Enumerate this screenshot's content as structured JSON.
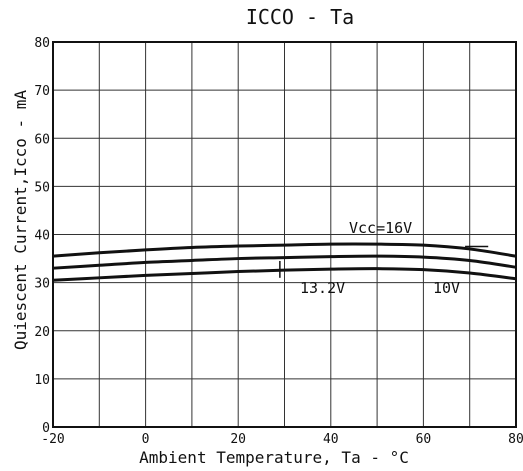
{
  "chart_data": {
    "type": "line",
    "title": "ICCO - Ta",
    "xlabel": "Ambient Temperature, Ta - °C",
    "ylabel": "Quiescent Current,Icco - mA",
    "xlim": [
      -20,
      80
    ],
    "ylim": [
      0,
      80
    ],
    "x_ticks": [
      -20,
      0,
      20,
      40,
      60,
      80
    ],
    "y_ticks": [
      0,
      10,
      20,
      30,
      40,
      50,
      60,
      70,
      80
    ],
    "grid": true,
    "series": [
      {
        "name": "Vcc=16V",
        "x": [
          -20,
          -10,
          0,
          10,
          20,
          30,
          40,
          50,
          60,
          70,
          80
        ],
        "y": [
          35.5,
          36.2,
          36.8,
          37.3,
          37.6,
          37.8,
          38.0,
          38.0,
          37.8,
          37.0,
          35.5
        ]
      },
      {
        "name": "13.2V",
        "x": [
          -20,
          -10,
          0,
          10,
          20,
          30,
          40,
          50,
          60,
          70,
          80
        ],
        "y": [
          33.0,
          33.6,
          34.2,
          34.6,
          35.0,
          35.2,
          35.4,
          35.5,
          35.3,
          34.6,
          33.2
        ]
      },
      {
        "name": "10V",
        "x": [
          -20,
          -10,
          0,
          10,
          20,
          30,
          40,
          50,
          60,
          70,
          80
        ],
        "y": [
          30.5,
          31.0,
          31.5,
          31.9,
          32.3,
          32.6,
          32.8,
          32.9,
          32.7,
          32.0,
          30.8
        ]
      }
    ],
    "annotations": {
      "vcc_label": "Vcc=16V",
      "mid_label": "13.2V",
      "low_label": "10V"
    }
  }
}
